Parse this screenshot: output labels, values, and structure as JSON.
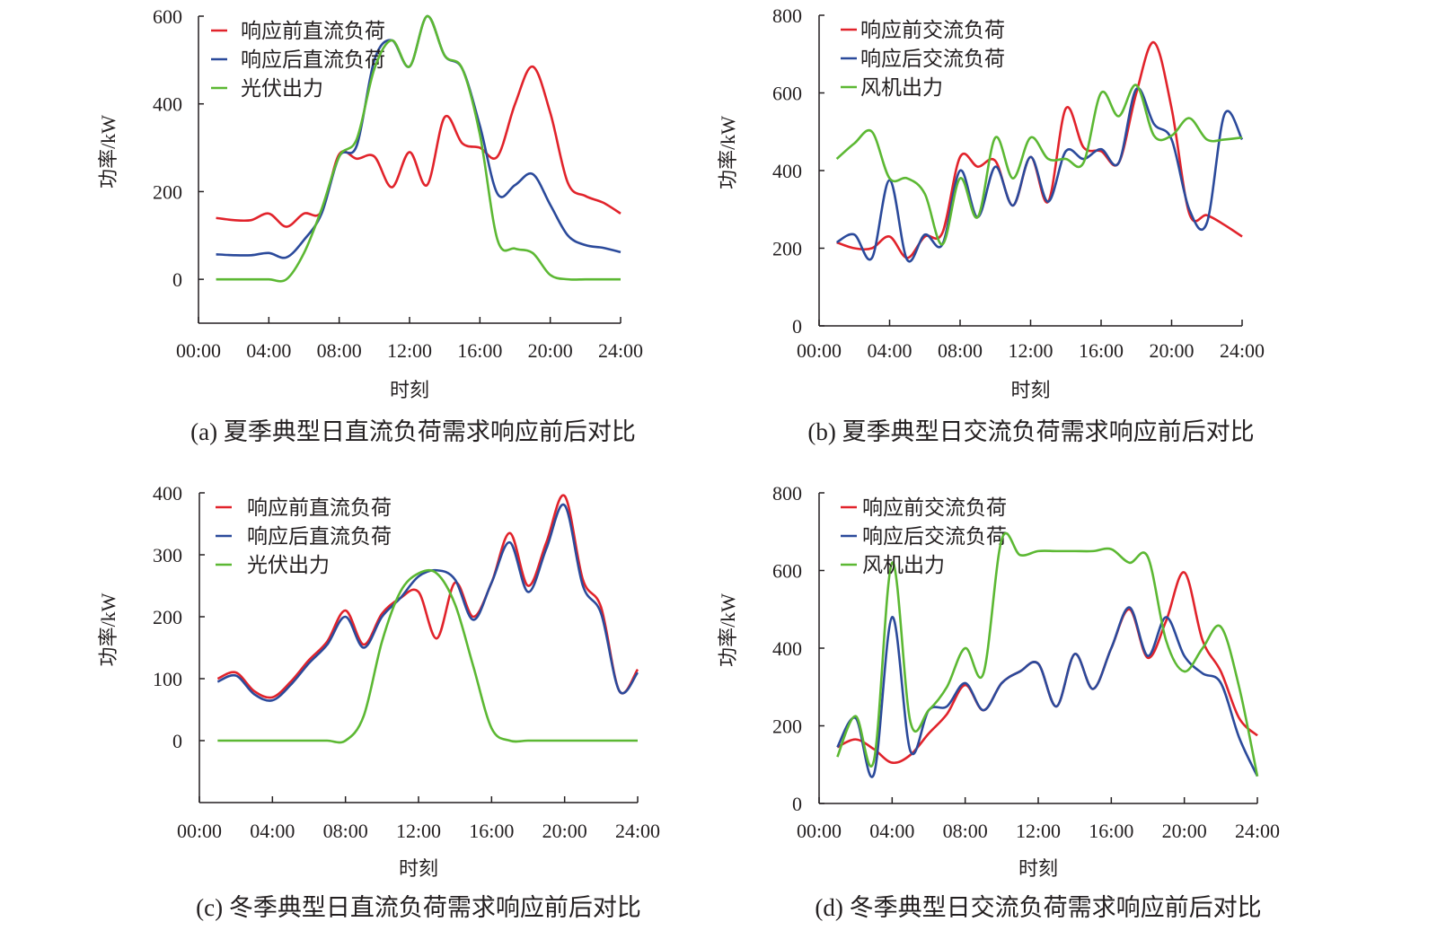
{
  "colors": {
    "before": "#e1232b",
    "after": "#2b4a9b",
    "source": "#5cb833",
    "axis": "#231f20"
  },
  "chart_data": [
    {
      "type": "line",
      "caption": "(a) 夏季典型日直流负荷需求响应前后对比",
      "xlabel": "时刻",
      "ylabel": "功率/kW",
      "ylim": [
        -100,
        600
      ],
      "yticks": [
        0,
        200,
        400,
        600
      ],
      "xticks": [
        "00:00",
        "04:00",
        "08:00",
        "12:00",
        "16:00",
        "20:00",
        "24:00"
      ],
      "x_hours": [
        1,
        2,
        3,
        4,
        5,
        6,
        7,
        8,
        9,
        10,
        11,
        12,
        13,
        14,
        15,
        16,
        17,
        18,
        19,
        20,
        21,
        22,
        23,
        24
      ],
      "legend_position": "top-left",
      "series": [
        {
          "name": "响应前直流负荷",
          "color_key": "before",
          "values": [
            140,
            135,
            135,
            150,
            120,
            150,
            155,
            285,
            275,
            280,
            210,
            290,
            215,
            370,
            310,
            300,
            280,
            400,
            485,
            380,
            220,
            190,
            175,
            150
          ]
        },
        {
          "name": "响应后直流负荷",
          "color_key": "after",
          "values": [
            57,
            55,
            55,
            60,
            50,
            90,
            150,
            280,
            305,
            500,
            545,
            485,
            600,
            510,
            480,
            350,
            195,
            215,
            240,
            170,
            100,
            78,
            72,
            62
          ]
        },
        {
          "name": "光伏出力",
          "color_key": "source",
          "values": [
            0,
            0,
            0,
            0,
            0,
            60,
            160,
            280,
            320,
            480,
            545,
            485,
            600,
            510,
            480,
            330,
            90,
            70,
            60,
            10,
            0,
            0,
            0,
            0
          ]
        }
      ]
    },
    {
      "type": "line",
      "caption": "(b) 夏季典型日交流负荷需求响应前后对比",
      "xlabel": "时刻",
      "ylabel": "功率/kW",
      "ylim": [
        0,
        800
      ],
      "yticks": [
        0,
        200,
        400,
        600,
        800
      ],
      "xticks": [
        "00:00",
        "04:00",
        "08:00",
        "12:00",
        "16:00",
        "20:00",
        "24:00"
      ],
      "x_hours": [
        1,
        2,
        3,
        4,
        5,
        6,
        7,
        8,
        9,
        10,
        11,
        12,
        13,
        14,
        15,
        16,
        17,
        18,
        19,
        20,
        21,
        22,
        23,
        24
      ],
      "legend_position": "top-left",
      "series": [
        {
          "name": "响应前交流负荷",
          "color_key": "before",
          "values": [
            215,
            200,
            200,
            230,
            175,
            230,
            240,
            435,
            410,
            425,
            310,
            435,
            320,
            560,
            460,
            450,
            420,
            600,
            730,
            560,
            290,
            285,
            260,
            230
          ]
        },
        {
          "name": "响应后交流负荷",
          "color_key": "after",
          "values": [
            215,
            235,
            175,
            375,
            170,
            235,
            210,
            400,
            280,
            410,
            310,
            435,
            320,
            450,
            430,
            455,
            420,
            610,
            520,
            480,
            300,
            265,
            545,
            480
          ]
        },
        {
          "name": "风机出力",
          "color_key": "source",
          "values": [
            430,
            470,
            500,
            380,
            380,
            340,
            210,
            380,
            280,
            485,
            380,
            485,
            430,
            430,
            420,
            600,
            540,
            620,
            490,
            490,
            535,
            480,
            480,
            485
          ]
        }
      ]
    },
    {
      "type": "line",
      "caption": "(c) 冬季典型日直流负荷需求响应前后对比",
      "xlabel": "时刻",
      "ylabel": "功率/kW",
      "ylim": [
        -100,
        400
      ],
      "yticks": [
        0,
        100,
        200,
        300,
        400
      ],
      "xticks": [
        "00:00",
        "04:00",
        "08:00",
        "12:00",
        "16:00",
        "20:00",
        "24:00"
      ],
      "x_hours": [
        1,
        2,
        3,
        4,
        5,
        6,
        7,
        8,
        9,
        10,
        11,
        12,
        13,
        14,
        15,
        16,
        17,
        18,
        19,
        20,
        21,
        22,
        23,
        24
      ],
      "legend_position": "top-left",
      "series": [
        {
          "name": "响应前直流负荷",
          "color_key": "before",
          "values": [
            100,
            110,
            80,
            70,
            95,
            130,
            160,
            210,
            155,
            205,
            230,
            240,
            165,
            255,
            200,
            255,
            335,
            250,
            320,
            395,
            260,
            215,
            80,
            115
          ]
        },
        {
          "name": "响应后直流负荷",
          "color_key": "after",
          "values": [
            95,
            105,
            75,
            65,
            90,
            125,
            155,
            200,
            150,
            200,
            230,
            265,
            275,
            260,
            195,
            255,
            320,
            240,
            310,
            380,
            250,
            205,
            80,
            110
          ]
        },
        {
          "name": "光伏出力",
          "color_key": "source",
          "values": [
            0,
            0,
            0,
            0,
            0,
            0,
            0,
            0,
            40,
            160,
            240,
            270,
            270,
            220,
            120,
            20,
            0,
            0,
            0,
            0,
            0,
            0,
            0,
            0
          ]
        }
      ]
    },
    {
      "type": "line",
      "caption": "(d) 冬季典型日交流负荷需求响应前后对比",
      "xlabel": "时刻",
      "ylabel": "功率/kW",
      "ylim": [
        0,
        800
      ],
      "yticks": [
        0,
        200,
        400,
        600,
        800
      ],
      "xticks": [
        "00:00",
        "04:00",
        "08:00",
        "12:00",
        "16:00",
        "20:00",
        "24:00"
      ],
      "x_hours": [
        1,
        2,
        3,
        4,
        5,
        6,
        7,
        8,
        9,
        10,
        11,
        12,
        13,
        14,
        15,
        16,
        17,
        18,
        19,
        20,
        21,
        22,
        23,
        24
      ],
      "legend_position": "top-left",
      "series": [
        {
          "name": "响应前交流负荷",
          "color_key": "before",
          "values": [
            145,
            165,
            140,
            105,
            125,
            180,
            230,
            305,
            240,
            310,
            340,
            360,
            250,
            385,
            295,
            400,
            500,
            375,
            470,
            595,
            420,
            340,
            220,
            175
          ]
        },
        {
          "name": "响应后交流负荷",
          "color_key": "after",
          "values": [
            145,
            220,
            75,
            480,
            135,
            240,
            250,
            310,
            240,
            310,
            340,
            360,
            250,
            385,
            295,
            400,
            505,
            380,
            480,
            380,
            335,
            310,
            170,
            70
          ]
        },
        {
          "name": "风机出力",
          "color_key": "source",
          "values": [
            120,
            225,
            110,
            620,
            210,
            240,
            300,
            400,
            335,
            680,
            640,
            650,
            650,
            650,
            650,
            655,
            620,
            635,
            420,
            340,
            400,
            455,
            300,
            70
          ]
        }
      ]
    }
  ]
}
